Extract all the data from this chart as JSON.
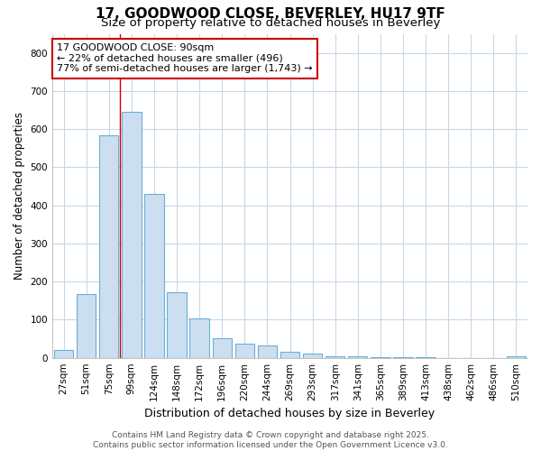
{
  "title": "17, GOODWOOD CLOSE, BEVERLEY, HU17 9TF",
  "subtitle": "Size of property relative to detached houses in Beverley",
  "xlabel": "Distribution of detached houses by size in Beverley",
  "ylabel": "Number of detached properties",
  "bar_color": "#ccdff0",
  "bar_edge_color": "#6baed6",
  "background_color": "#ffffff",
  "plot_bg_color": "#ffffff",
  "grid_color": "#c8d8e8",
  "categories": [
    "27sqm",
    "51sqm",
    "75sqm",
    "99sqm",
    "124sqm",
    "148sqm",
    "172sqm",
    "196sqm",
    "220sqm",
    "244sqm",
    "269sqm",
    "293sqm",
    "317sqm",
    "341sqm",
    "365sqm",
    "389sqm",
    "413sqm",
    "438sqm",
    "462sqm",
    "486sqm",
    "510sqm"
  ],
  "values": [
    20,
    168,
    583,
    645,
    430,
    172,
    103,
    52,
    38,
    32,
    15,
    12,
    5,
    4,
    2,
    1,
    1,
    0,
    0,
    0,
    5
  ],
  "ylim": [
    0,
    850
  ],
  "yticks": [
    0,
    100,
    200,
    300,
    400,
    500,
    600,
    700,
    800
  ],
  "vline_color": "#cc0000",
  "annotation_line1": "17 GOODWOOD CLOSE: 90sqm",
  "annotation_line2": "← 22% of detached houses are smaller (496)",
  "annotation_line3": "77% of semi-detached houses are larger (1,743) →",
  "annotation_box_color": "#ffffff",
  "annotation_box_edge": "#cc0000",
  "footer_text": "Contains HM Land Registry data © Crown copyright and database right 2025.\nContains public sector information licensed under the Open Government Licence v3.0.",
  "title_fontsize": 11,
  "subtitle_fontsize": 9.5,
  "xlabel_fontsize": 9,
  "ylabel_fontsize": 8.5,
  "tick_fontsize": 7.5,
  "annotation_fontsize": 8,
  "footer_fontsize": 6.5
}
